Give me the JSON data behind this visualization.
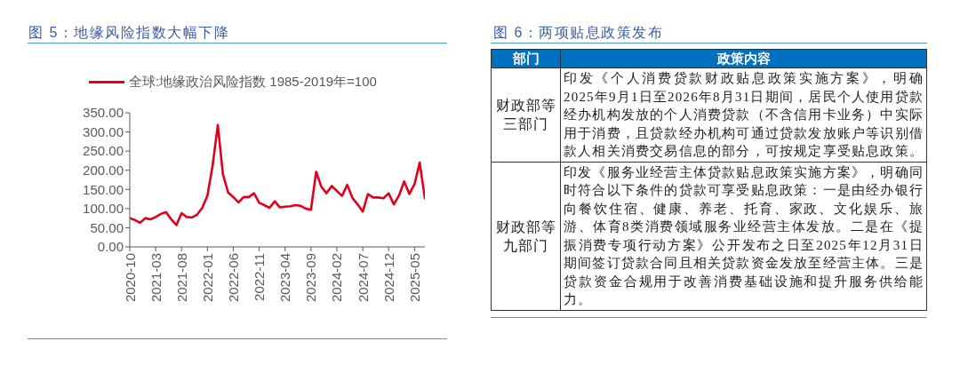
{
  "chart_data": [
    {
      "type": "line",
      "title": "图 5：地缘风险指数大幅下降",
      "legend": "top",
      "marker": "none",
      "x": [
        "2020-10",
        "2020-11",
        "2020-12",
        "2021-01",
        "2021-02",
        "2021-03",
        "2021-04",
        "2021-05",
        "2021-06",
        "2021-07",
        "2021-08",
        "2021-09",
        "2021-10",
        "2021-11",
        "2021-12",
        "2022-01",
        "2022-02",
        "2022-03",
        "2022-04",
        "2022-05",
        "2022-06",
        "2022-07",
        "2022-08",
        "2022-09",
        "2022-10",
        "2022-11",
        "2022-12",
        "2023-01",
        "2023-02",
        "2023-03",
        "2023-04",
        "2023-05",
        "2023-06",
        "2023-07",
        "2023-08",
        "2023-09",
        "2023-10",
        "2023-11",
        "2023-12",
        "2024-01",
        "2024-02",
        "2024-03",
        "2024-04",
        "2024-05",
        "2024-06",
        "2024-07",
        "2024-08",
        "2024-09",
        "2024-10",
        "2024-11",
        "2024-12",
        "2025-01",
        "2025-02",
        "2025-03",
        "2025-04",
        "2025-05",
        "2025-06",
        "2025-07"
      ],
      "xlim": [
        "2020-10",
        "2025-07"
      ],
      "xticks": [
        "2020-10",
        "2021-03",
        "2021-08",
        "2022-01",
        "2022-06",
        "2022-11",
        "2023-04",
        "2023-09",
        "2024-02",
        "2024-07",
        "2024-12",
        "2025-05"
      ],
      "ylim": [
        0,
        350
      ],
      "yticks": [
        {
          "value": 0,
          "label": "0.00"
        },
        {
          "value": 50,
          "label": "50.00"
        },
        {
          "value": 100,
          "label": "100.00"
        },
        {
          "value": 150,
          "label": "150.00"
        },
        {
          "value": 200,
          "label": "200.00"
        },
        {
          "value": 250,
          "label": "250.00"
        },
        {
          "value": 300,
          "label": "300.00"
        },
        {
          "value": 350,
          "label": "350.00"
        }
      ],
      "series": [
        {
          "name": "全球:地缘政治风险指数 1985-2019年=100",
          "color": "#e0001b",
          "values": [
            75,
            70,
            63,
            75,
            72,
            78,
            86,
            91,
            72,
            57,
            88,
            78,
            77,
            84,
            102,
            134,
            212,
            318,
            189,
            142,
            130,
            116,
            130,
            130,
            140,
            115,
            109,
            102,
            119,
            103,
            105,
            106,
            109,
            107,
            100,
            97,
            196,
            157,
            140,
            159,
            146,
            133,
            162,
            128,
            111,
            92,
            138,
            129,
            129,
            127,
            140,
            111,
            134,
            171,
            138,
            164,
            220,
            126
          ]
        }
      ]
    },
    {
      "type": "other",
      "title": "图 6：两项贴息政策发布",
      "annotations": [
        "部门",
        "政策内容",
        "财政部等三部门",
        "印发《个人消费贷款财政贴息政策实施方案》，明确2025年9月1日至2026年8月31日期间，居民个人使用贷款经办机构发放的个人消费贷款（不含信用卡业务）中实际用于消费，且贷款经办机构可通过贷款发放账户等识别借款人相关消费交易信息的部分，可按规定享受贴息政策。",
        "财政部等九部门",
        "印发《服务业经营主体贷款贴息政策实施方案》，明确同时符合以下条件的贷款可享受贴息政策：一是由经办银行向餐饮住宿、健康、养老、托育、家政、文化娱乐、旅游、体育8类消费领域服务业经营主体发放。二是在《提振消费专项行动方案》公开发布之日至2025年12月31日期间签订贷款合同且相关贷款资金发放至经营主体。三是贷款资金合规用于改善消费基础设施和提升服务供给能力。"
      ]
    }
  ]
}
